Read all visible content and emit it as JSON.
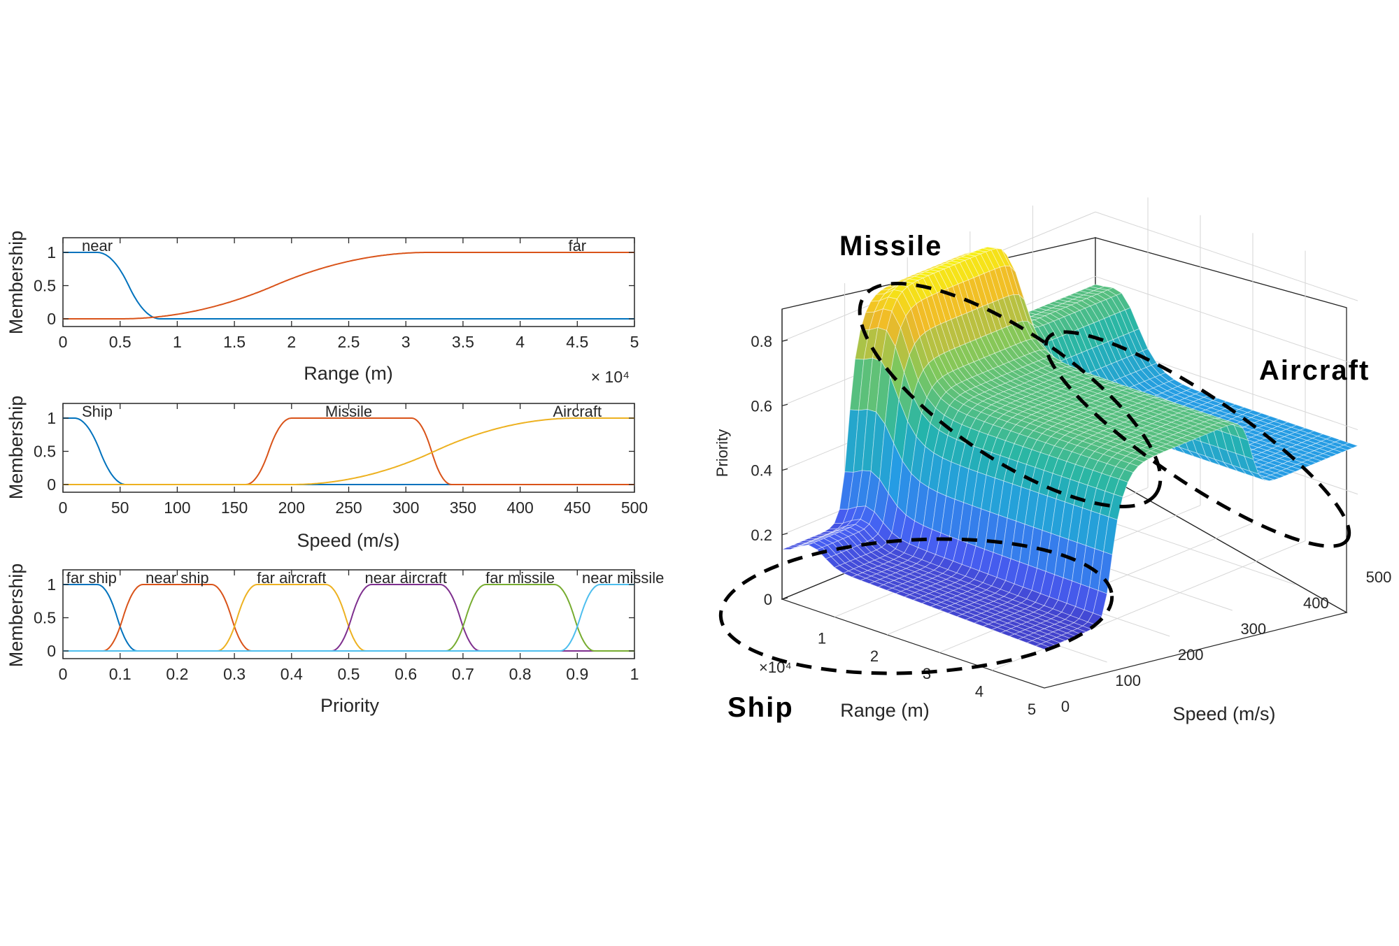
{
  "chart_data": [
    {
      "type": "line",
      "ylabel": "Membership",
      "xlabel": "Range (m)",
      "exponent_label": "× 10⁴",
      "xlim": [
        0,
        5
      ],
      "ylim": [
        0,
        1
      ],
      "x_ticks": [
        "0",
        "0.5",
        "1",
        "1.5",
        "2",
        "2.5",
        "3",
        "3.5",
        "4",
        "4.5",
        "5"
      ],
      "y_ticks": [
        "0",
        "0.5",
        "1"
      ],
      "series": [
        {
          "name": "near",
          "color": "#0072BD",
          "shape": "zmf",
          "params": [
            0.3,
            0.85
          ],
          "label_x": 0.3
        },
        {
          "name": "far",
          "color": "#D95319",
          "shape": "smf",
          "params": [
            0.5,
            3.2
          ],
          "label_x": 4.5
        }
      ]
    },
    {
      "type": "line",
      "ylabel": "Membership",
      "xlabel": "Speed (m/s)",
      "xlim": [
        0,
        500
      ],
      "ylim": [
        0,
        1
      ],
      "x_ticks": [
        "0",
        "50",
        "100",
        "150",
        "200",
        "250",
        "300",
        "350",
        "400",
        "450",
        "500"
      ],
      "y_ticks": [
        "0",
        "0.5",
        "1"
      ],
      "series": [
        {
          "name": "Ship",
          "color": "#0072BD",
          "shape": "zmf",
          "params": [
            10,
            55
          ],
          "label_x": 30
        },
        {
          "name": "Missile",
          "color": "#D95319",
          "shape": "pimf",
          "params": [
            160,
            200,
            305,
            340
          ],
          "label_x": 250
        },
        {
          "name": "Aircraft",
          "color": "#EDB120",
          "shape": "smf",
          "params": [
            200,
            450
          ],
          "label_x": 450
        }
      ]
    },
    {
      "type": "line",
      "ylabel": "Membership",
      "xlabel": "Priority",
      "xlim": [
        0,
        1
      ],
      "ylim": [
        0,
        1
      ],
      "x_ticks": [
        "0",
        "0.1",
        "0.2",
        "0.3",
        "0.4",
        "0.5",
        "0.6",
        "0.7",
        "0.8",
        "0.9",
        "1"
      ],
      "y_ticks": [
        "0",
        "0.5",
        "1"
      ],
      "series": [
        {
          "name": "far ship",
          "color": "#0072BD",
          "shape": "pimf",
          "params": [
            -0.1,
            -0.05,
            0.06,
            0.13
          ],
          "label_x": 0.05
        },
        {
          "name": "near ship",
          "color": "#D95319",
          "shape": "pimf",
          "params": [
            0.07,
            0.14,
            0.26,
            0.33
          ],
          "label_x": 0.2
        },
        {
          "name": "far aircraft",
          "color": "#EDB120",
          "shape": "pimf",
          "params": [
            0.27,
            0.34,
            0.46,
            0.53
          ],
          "label_x": 0.4
        },
        {
          "name": "near aircraft",
          "color": "#7E2F8E",
          "shape": "pimf",
          "params": [
            0.47,
            0.54,
            0.66,
            0.73
          ],
          "label_x": 0.6
        },
        {
          "name": "far missile",
          "color": "#77AC30",
          "shape": "pimf",
          "params": [
            0.67,
            0.74,
            0.86,
            0.93
          ],
          "label_x": 0.8
        },
        {
          "name": "near missile",
          "color": "#4DBEEE",
          "shape": "pimf",
          "params": [
            0.87,
            0.94,
            1.05,
            1.1
          ],
          "label_x": 0.98
        }
      ]
    },
    {
      "type": "surface",
      "zlabel": "Priority",
      "xlabel": "Range (m)",
      "ylabel": "Speed (m/s)",
      "exponent_label": "×10⁴",
      "xlim": [
        0,
        5
      ],
      "ylim": [
        0,
        500
      ],
      "zlim": [
        0,
        0.9
      ],
      "x_ticks": [
        "0",
        "1",
        "2",
        "3",
        "4",
        "5"
      ],
      "y_ticks": [
        "0",
        "100",
        "200",
        "300",
        "400",
        "500"
      ],
      "z_ticks": [
        "0",
        "0.2",
        "0.4",
        "0.6",
        "0.8"
      ],
      "annotations": [
        "Missile",
        "Aircraft",
        "Ship"
      ],
      "colormap": "parula"
    }
  ]
}
